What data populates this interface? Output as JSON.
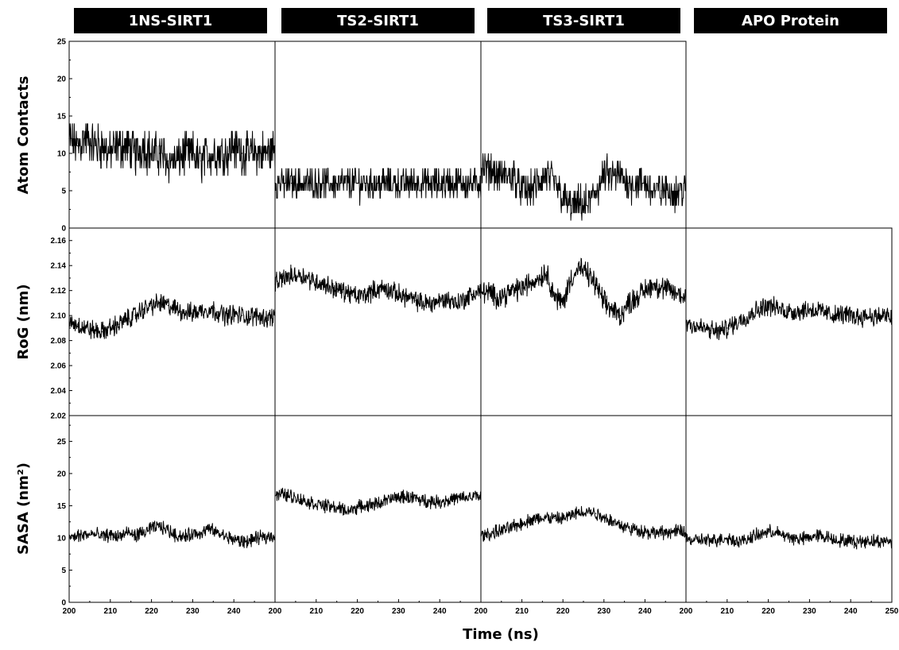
{
  "chart_data": {
    "type": "line",
    "columns": [
      "1NS-SIRT1",
      "TS2-SIRT1",
      "TS3-SIRT1",
      "APO Protein"
    ],
    "rows": [
      {
        "ylabel": "Atom Contacts",
        "ylim": [
          0,
          25
        ],
        "yticks": [
          0,
          5,
          10,
          15,
          20,
          25
        ],
        "panels": [
          {
            "column": "1NS-SIRT1",
            "x": [
              200,
              202,
              204,
              206,
              208,
              210,
              212,
              214,
              216,
              218,
              220,
              222,
              224,
              226,
              228,
              230,
              232,
              234,
              236,
              238,
              240,
              242,
              244,
              246,
              248,
              250
            ],
            "y": [
              12,
              11,
              12,
              11,
              11,
              10,
              11,
              11,
              10,
              11,
              10,
              10,
              9,
              9,
              10,
              10,
              9,
              10,
              10,
              10,
              11,
              10,
              10,
              10,
              10,
              11
            ]
          },
          {
            "column": "TS2-SIRT1",
            "x": [
              200,
              202,
              204,
              206,
              208,
              210,
              212,
              214,
              216,
              218,
              220,
              222,
              224,
              226,
              228,
              230,
              232,
              234,
              236,
              238,
              240,
              242,
              244,
              246,
              248,
              250
            ],
            "y": [
              6,
              6,
              6,
              6,
              6,
              6,
              6,
              6,
              6,
              6,
              6,
              6,
              6,
              6,
              6,
              6,
              6,
              6,
              6,
              6,
              6,
              6,
              6,
              6,
              6,
              6
            ]
          },
          {
            "column": "TS3-SIRT1",
            "x": [
              200,
              202,
              204,
              206,
              208,
              210,
              212,
              214,
              216,
              218,
              220,
              222,
              224,
              226,
              228,
              230,
              232,
              234,
              236,
              238,
              240,
              242,
              244,
              246,
              248,
              250
            ],
            "y": [
              8,
              8,
              7,
              7,
              7,
              5,
              5,
              6,
              7,
              6,
              4,
              3,
              3,
              3,
              5,
              7,
              7,
              7,
              6,
              6,
              6,
              5,
              5,
              5,
              5,
              5
            ]
          },
          {
            "column": "APO Protein",
            "x": [],
            "y": []
          }
        ]
      },
      {
        "ylabel": "RoG (nm)",
        "ylim": [
          2.02,
          2.17
        ],
        "yticks": [
          2.02,
          2.04,
          2.06,
          2.08,
          2.1,
          2.12,
          2.14,
          2.16
        ],
        "panels": [
          {
            "column": "1NS-SIRT1",
            "x": [
              200,
              202,
              204,
              206,
              208,
              210,
              212,
              214,
              216,
              218,
              220,
              222,
              224,
              226,
              228,
              230,
              232,
              234,
              236,
              238,
              240,
              242,
              244,
              246,
              248,
              250
            ],
            "y": [
              2.095,
              2.093,
              2.09,
              2.088,
              2.087,
              2.09,
              2.093,
              2.097,
              2.1,
              2.105,
              2.108,
              2.11,
              2.108,
              2.105,
              2.103,
              2.102,
              2.104,
              2.105,
              2.103,
              2.1,
              2.101,
              2.1,
              2.099,
              2.1,
              2.098,
              2.1
            ]
          },
          {
            "column": "TS2-SIRT1",
            "x": [
              200,
              202,
              204,
              206,
              208,
              210,
              212,
              214,
              216,
              218,
              220,
              222,
              224,
              226,
              228,
              230,
              232,
              234,
              236,
              238,
              240,
              242,
              244,
              246,
              248,
              250
            ],
            "y": [
              2.125,
              2.13,
              2.132,
              2.133,
              2.13,
              2.127,
              2.125,
              2.122,
              2.12,
              2.118,
              2.115,
              2.117,
              2.12,
              2.122,
              2.12,
              2.117,
              2.115,
              2.112,
              2.11,
              2.11,
              2.112,
              2.113,
              2.11,
              2.113,
              2.117,
              2.12
            ]
          },
          {
            "column": "TS3-SIRT1",
            "x": [
              200,
              202,
              204,
              206,
              208,
              210,
              212,
              214,
              216,
              218,
              220,
              222,
              224,
              226,
              228,
              230,
              232,
              234,
              236,
              238,
              240,
              242,
              244,
              246,
              248,
              250
            ],
            "y": [
              2.12,
              2.118,
              2.115,
              2.117,
              2.12,
              2.122,
              2.126,
              2.13,
              2.135,
              2.115,
              2.11,
              2.13,
              2.138,
              2.133,
              2.125,
              2.11,
              2.105,
              2.1,
              2.11,
              2.115,
              2.12,
              2.125,
              2.122,
              2.12,
              2.117,
              2.115
            ]
          },
          {
            "column": "APO Protein",
            "x": [
              200,
              202,
              204,
              206,
              208,
              210,
              212,
              214,
              216,
              218,
              220,
              222,
              224,
              226,
              228,
              230,
              232,
              234,
              236,
              238,
              240,
              242,
              244,
              246,
              248,
              250
            ],
            "y": [
              2.095,
              2.092,
              2.09,
              2.088,
              2.087,
              2.09,
              2.094,
              2.098,
              2.102,
              2.106,
              2.108,
              2.106,
              2.104,
              2.103,
              2.104,
              2.105,
              2.104,
              2.102,
              2.1,
              2.101,
              2.1,
              2.099,
              2.1,
              2.099,
              2.1,
              2.098
            ]
          }
        ]
      },
      {
        "ylabel": "SASA (nm²)",
        "ylim": [
          0,
          29
        ],
        "yticks": [
          0,
          5,
          10,
          15,
          20,
          25
        ],
        "panels": [
          {
            "column": "1NS-SIRT1",
            "x": [
              200,
              202,
              204,
              206,
              208,
              210,
              212,
              214,
              216,
              218,
              220,
              222,
              224,
              226,
              228,
              230,
              232,
              234,
              236,
              238,
              240,
              242,
              244,
              246,
              248,
              250
            ],
            "y": [
              10,
              10.3,
              10.5,
              10.6,
              10.2,
              10.5,
              10.2,
              10.8,
              10.4,
              10.8,
              11.5,
              11.8,
              11.2,
              10.4,
              10.2,
              10.6,
              10.8,
              11.4,
              10.8,
              10.2,
              9.8,
              9.4,
              9.6,
              10,
              10.2,
              10.4
            ]
          },
          {
            "column": "TS2-SIRT1",
            "x": [
              200,
              202,
              204,
              206,
              208,
              210,
              212,
              214,
              216,
              218,
              220,
              222,
              224,
              226,
              228,
              230,
              232,
              234,
              236,
              238,
              240,
              242,
              244,
              246,
              248,
              250
            ],
            "y": [
              16.6,
              16.8,
              16.5,
              16,
              15.6,
              15.3,
              15,
              14.8,
              14.5,
              14.2,
              14.8,
              15,
              15.2,
              15.6,
              16,
              16.3,
              16.4,
              16.2,
              15.8,
              15.7,
              15.6,
              15.9,
              16.1,
              16.2,
              16.4,
              16.6
            ]
          },
          {
            "column": "TS3-SIRT1",
            "x": [
              200,
              202,
              204,
              206,
              208,
              210,
              212,
              214,
              216,
              218,
              220,
              222,
              224,
              226,
              228,
              230,
              232,
              234,
              236,
              238,
              240,
              242,
              244,
              246,
              248,
              250
            ],
            "y": [
              10.3,
              10.6,
              11,
              11.3,
              11.8,
              12.3,
              12.8,
              13,
              13.2,
              13,
              13,
              13.5,
              14,
              14.2,
              13.8,
              13.3,
              12.6,
              12,
              11.5,
              11.3,
              11,
              10.8,
              10.8,
              10.9,
              11,
              11
            ]
          },
          {
            "column": "APO Protein",
            "x": [
              200,
              202,
              204,
              206,
              208,
              210,
              212,
              214,
              216,
              218,
              220,
              222,
              224,
              226,
              228,
              230,
              232,
              234,
              236,
              238,
              240,
              242,
              244,
              246,
              248,
              250
            ],
            "y": [
              9.8,
              9.6,
              9.7,
              9.5,
              9.8,
              10,
              9.6,
              9.5,
              10.2,
              10.5,
              11,
              10.8,
              10.3,
              10,
              9.8,
              10.1,
              10.4,
              10.2,
              9.8,
              9.6,
              9.5,
              9.4,
              9.6,
              9.5,
              9.4,
              9.6
            ]
          }
        ]
      }
    ],
    "xlim": [
      200,
      250
    ],
    "xticks": [
      200,
      210,
      220,
      230,
      240,
      250
    ],
    "xlabel": "Time (ns)"
  }
}
